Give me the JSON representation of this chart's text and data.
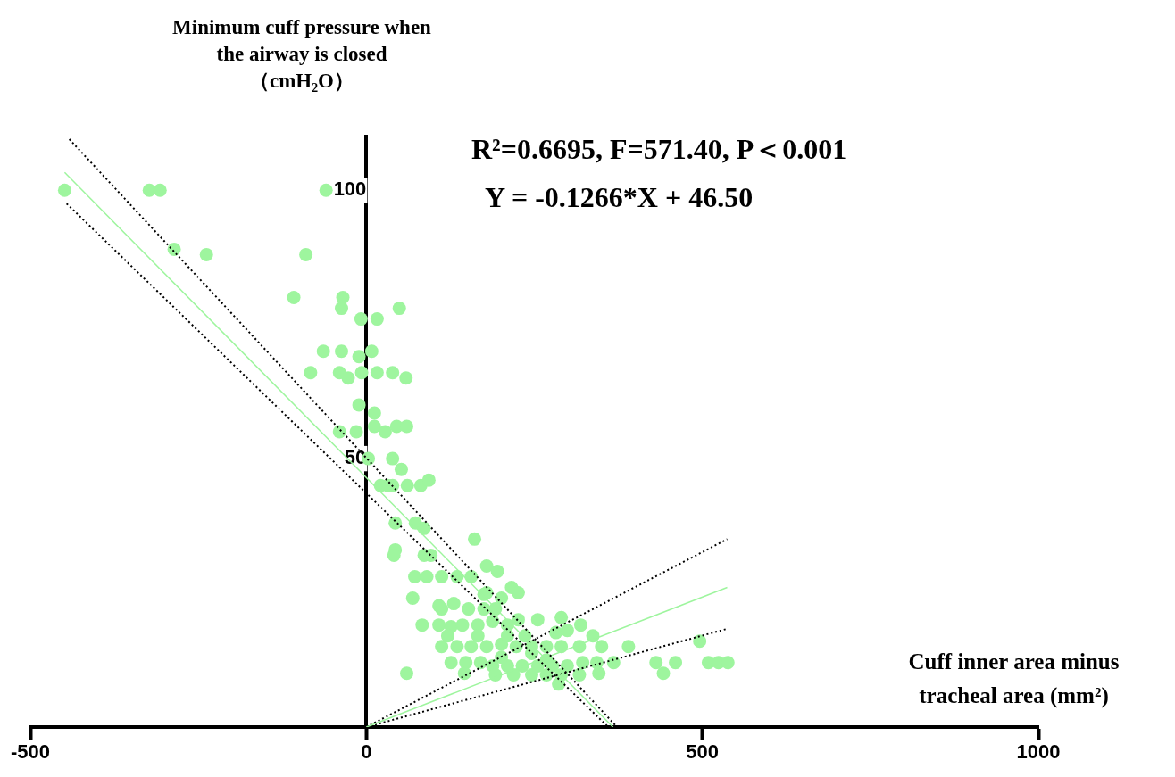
{
  "chart_data": {
    "type": "scatter",
    "ylabel": "Minimum cuff pressure when the airway is closed （cmH₂O）",
    "xlabel": "Cuff inner area minus tracheal area (mm²)",
    "annotations": [
      "R²=0.6695, F=571.40, P＜0.001",
      "Y = -0.1266*X + 46.50"
    ],
    "xlim": [
      -500,
      1000
    ],
    "xticks": [
      -500,
      0,
      500,
      1000
    ],
    "ylim": [
      0,
      110
    ],
    "yticks": [
      50,
      100
    ],
    "series": [
      {
        "type": "scatter",
        "marker": "circle",
        "color": "#9ef59e",
        "x": [
          -449,
          -323,
          -307,
          -60,
          -286,
          -238,
          -90,
          -108,
          -35,
          -37,
          -8,
          16,
          49,
          -64,
          -37,
          8,
          -11,
          -83,
          -40,
          -27,
          -7,
          16,
          39,
          59,
          -11,
          12,
          12,
          -40,
          -15,
          28,
          45,
          60,
          3,
          39,
          52,
          21,
          39,
          61,
          81,
          93,
          32,
          43,
          73,
          86,
          161,
          43,
          41,
          86,
          96,
          179,
          195,
          216,
          226,
          201,
          72,
          90,
          112,
          135,
          156,
          69,
          179,
          108,
          130,
          152,
          175,
          192,
          83,
          108,
          126,
          143,
          166,
          188,
          226,
          255,
          290,
          319,
          282,
          299,
          337,
          350,
          390,
          496,
          112,
          135,
          156,
          179,
          201,
          223,
          246,
          268,
          290,
          317,
          121,
          166,
          210,
          236,
          126,
          148,
          170,
          188,
          210,
          232,
          255,
          277,
          299,
          322,
          343,
          368,
          431,
          460,
          509,
          524,
          538,
          146,
          192,
          219,
          246,
          268,
          290,
          317,
          346,
          442,
          286,
          60,
          112,
          175,
          210,
          246,
          201,
          268
        ],
        "values": [
          100,
          100,
          100,
          100,
          89,
          88,
          88,
          80,
          80,
          78,
          76,
          76,
          78,
          70,
          70,
          70,
          69,
          66,
          66,
          65,
          66,
          66,
          66,
          65,
          60,
          58.5,
          56,
          55,
          55,
          55,
          56,
          56,
          50,
          50,
          48,
          45,
          45,
          45,
          45,
          46,
          45,
          38,
          38,
          37,
          35,
          33,
          32,
          32,
          32,
          30,
          29,
          26,
          25,
          24,
          28,
          28,
          28,
          28,
          28,
          24,
          25,
          22.6,
          23,
          22,
          22,
          22,
          19,
          19,
          18.7,
          19,
          19,
          19.7,
          20,
          20,
          20.4,
          19,
          17.6,
          18,
          17,
          15,
          15,
          16,
          15,
          15,
          15,
          15,
          15.4,
          15,
          15,
          15,
          15,
          15,
          17,
          17,
          17,
          17,
          12,
          12,
          12,
          11.4,
          11.4,
          11.4,
          11.4,
          11.4,
          11.4,
          12,
          12,
          12,
          12,
          12,
          12,
          12,
          12,
          10,
          9.7,
          9.7,
          9.7,
          9.7,
          9.7,
          9.7,
          10,
          10,
          8,
          10,
          22,
          24.7,
          19,
          13.7,
          13,
          12.5
        ]
      },
      {
        "type": "line",
        "color": "#9ef59e",
        "line_style": "solid",
        "x": [
          -449,
          367
        ],
        "values": [
          103.3,
          0
        ]
      },
      {
        "type": "line",
        "color": "#000000",
        "line_style": "dotted",
        "x": [
          -442,
          373
        ],
        "values": [
          109.5,
          0
        ]
      },
      {
        "type": "line",
        "color": "#000000",
        "line_style": "dotted",
        "x": [
          -446,
          360
        ],
        "values": [
          97.5,
          0
        ]
      },
      {
        "type": "line",
        "color": "#9ef59e",
        "line_style": "solid",
        "x": [
          0,
          537
        ],
        "values": [
          0,
          26
        ]
      },
      {
        "type": "line",
        "color": "#000000",
        "line_style": "dotted",
        "x": [
          0,
          537
        ],
        "values": [
          0,
          35
        ]
      },
      {
        "type": "line",
        "color": "#000000",
        "line_style": "dotted",
        "x": [
          0,
          537
        ],
        "values": [
          0,
          18.3
        ]
      }
    ]
  }
}
